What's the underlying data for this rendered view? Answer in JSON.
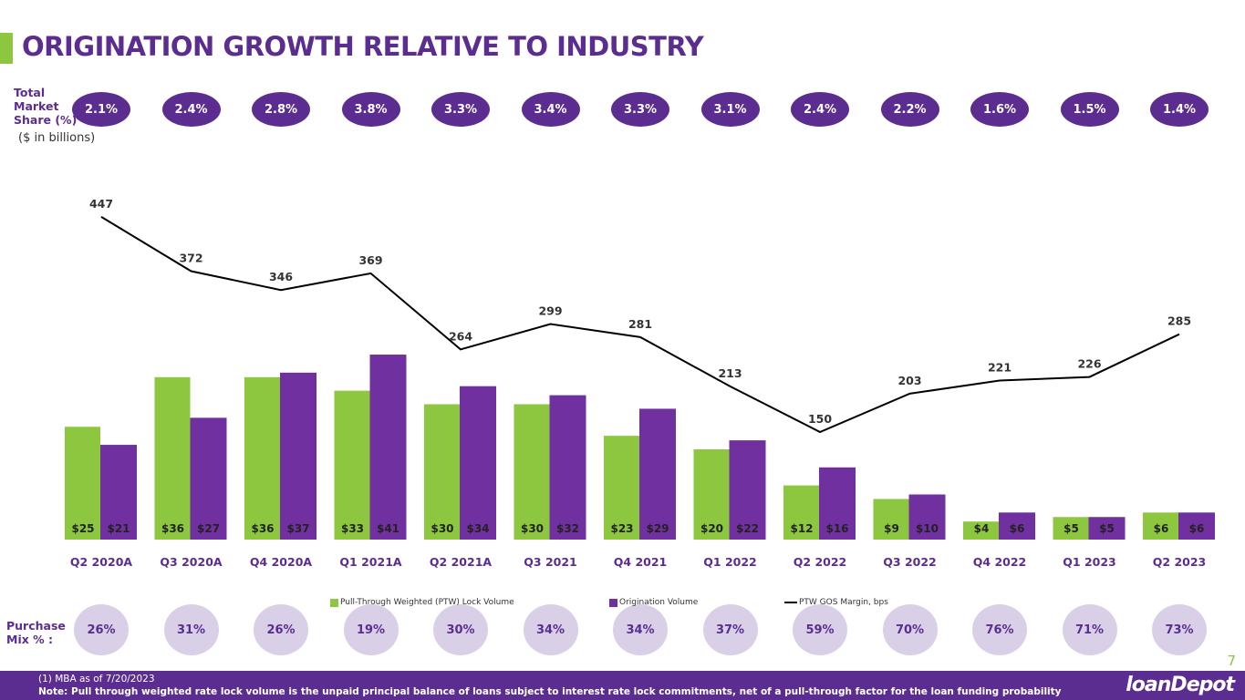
{
  "title": "ORIGINATION GROWTH RELATIVE TO INDUSTRY",
  "market_share_label": "Total Market Share (%)",
  "market_share_footnote": "(1)",
  "units": "($ in billions)",
  "market_share": [
    "2.1%",
    "2.4%",
    "2.8%",
    "3.8%",
    "3.3%",
    "3.4%",
    "3.3%",
    "3.1%",
    "2.4%",
    "2.2%",
    "1.6%",
    "1.5%",
    "1.4%"
  ],
  "purchase_mix_label": "Purchase Mix % :",
  "purchase_mix": [
    "26%",
    "31%",
    "26%",
    "19%",
    "30%",
    "34%",
    "34%",
    "37%",
    "59%",
    "70%",
    "76%",
    "71%",
    "73%"
  ],
  "page_number": "7",
  "footer": {
    "note1": "(1)  MBA as of 7/20/2023",
    "note2": "Note: Pull through weighted rate lock volume is the unpaid principal balance of loans subject to interest rate lock commitments, net of a pull-through factor for the loan funding probability",
    "logo": "loanDepot"
  },
  "colors": {
    "green": "#8dc63f",
    "purple": "#7030a0",
    "line": "#000000",
    "brand": "#5b2d91"
  },
  "chart_data": {
    "type": "bar+line",
    "categories": [
      "Q2 2020A",
      "Q3 2020A",
      "Q4 2020A",
      "Q1 2021A",
      "Q2 2021A",
      "Q3 2021",
      "Q4 2021",
      "Q1 2022",
      "Q2 2022",
      "Q3 2022",
      "Q4 2022",
      "Q1 2023",
      "Q2 2023"
    ],
    "series": [
      {
        "name": "Pull-Through Weighted (PTW) Lock Volume",
        "type": "bar",
        "values": [
          25,
          36,
          36,
          33,
          30,
          30,
          23,
          20,
          12,
          9,
          4,
          5,
          6
        ]
      },
      {
        "name": "Origination Volume",
        "type": "bar",
        "values": [
          21,
          27,
          37,
          41,
          34,
          32,
          29,
          22,
          16,
          10,
          6,
          5,
          6
        ]
      },
      {
        "name": "PTW GOS Margin, bps",
        "type": "line",
        "values": [
          447,
          372,
          346,
          369,
          264,
          299,
          281,
          213,
          150,
          203,
          221,
          226,
          285
        ]
      }
    ],
    "legend_position": "bottom",
    "grid": false
  }
}
